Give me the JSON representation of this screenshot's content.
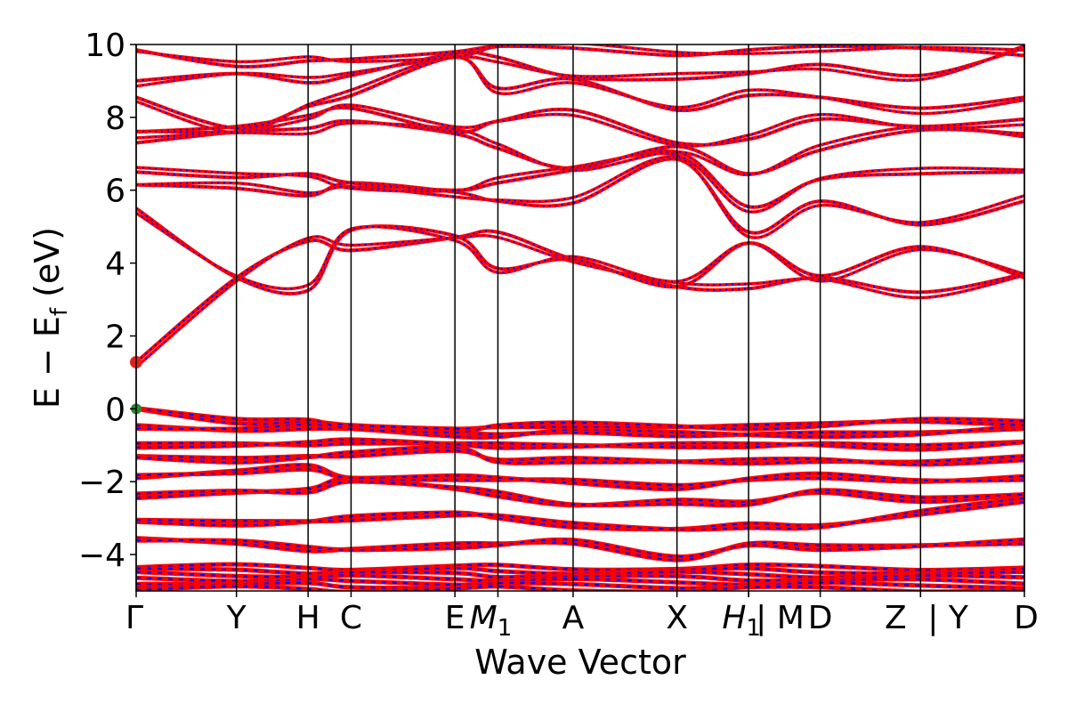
{
  "chart_data": {
    "type": "line",
    "title": "",
    "xlabel": "Wave Vector",
    "ylabel": "E − Ef (eV)",
    "ylabel_main": "E − E",
    "ylabel_sub": "f",
    "ylabel_unit": " (eV)",
    "ylim": [
      -5,
      10
    ],
    "yticks": [
      -4,
      -2,
      0,
      2,
      4,
      6,
      8,
      10
    ],
    "ytick_labels": [
      "−4",
      "−2",
      "0",
      "2",
      "4",
      "6",
      "8",
      "10"
    ],
    "xlim": [
      0,
      12.4
    ],
    "kpoints": [
      {
        "label": "Γ",
        "x": 0.0
      },
      {
        "label": "Y",
        "x": 1.4
      },
      {
        "label": "H",
        "x": 2.4
      },
      {
        "label": "C",
        "x": 3.0
      },
      {
        "label": "E",
        "x": 4.45
      },
      {
        "label": "M",
        "sub": "1",
        "x": 5.05
      },
      {
        "label": "A",
        "x": 6.1
      },
      {
        "label": "X",
        "x": 7.55
      },
      {
        "label": "H",
        "sub": "1",
        "x": 8.55
      },
      {
        "label": "| M",
        "x": 8.55
      },
      {
        "label": "D",
        "x": 9.55
      },
      {
        "label": "Z",
        "x": 10.95
      },
      {
        "label": "| Y",
        "x": 10.95
      },
      {
        "label": "D",
        "x": 12.4
      }
    ],
    "kpoint_lines": [
      0.0,
      1.4,
      2.4,
      3.0,
      4.45,
      5.05,
      6.1,
      7.55,
      8.55,
      9.55,
      10.95,
      12.4
    ],
    "cbm": {
      "x": 0.0,
      "y": 1.28,
      "color": "#e02020"
    },
    "vbm": {
      "x": 0.0,
      "y": 0.0,
      "color": "#2a8a2a"
    },
    "colors": {
      "primary": "#ff0000",
      "secondary": "#0000ff",
      "axis": "#000000"
    },
    "bands": [
      {
        "name": "valence-deep",
        "group": "valence",
        "x": [
          0,
          1.4,
          2.4,
          3.0,
          4.45,
          5.05,
          6.1,
          7.55,
          8.55,
          9.55,
          10.95,
          12.4
        ],
        "levels": [
          -4.35,
          -4.45,
          -4.55,
          -4.65,
          -4.75,
          -4.85,
          -4.95
        ]
      },
      {
        "name": "vb-1",
        "x": [
          0,
          1.4,
          2.4,
          3.0,
          4.45,
          5.05,
          6.1,
          7.55,
          8.55,
          9.55,
          10.95,
          12.4
        ],
        "y": [
          -3.55,
          -3.7,
          -3.9,
          -3.85,
          -3.7,
          -3.7,
          -3.7,
          -4.15,
          -3.7,
          -3.75,
          -3.75,
          -3.7
        ]
      },
      {
        "name": "vb-2",
        "x": [
          0,
          1.4,
          2.4,
          3.0,
          4.45,
          5.05,
          6.1,
          7.55,
          8.55,
          9.55,
          10.95,
          12.4
        ],
        "y": [
          -3.1,
          -3.2,
          -3.1,
          -2.95,
          -2.85,
          -3.0,
          -3.25,
          -3.3,
          -3.15,
          -3.2,
          -2.9,
          -2.55
        ]
      },
      {
        "name": "vb-3",
        "x": [
          0,
          1.4,
          2.4,
          3.0,
          4.45,
          5.05,
          6.1,
          7.55,
          8.55,
          9.55,
          10.95,
          12.4
        ],
        "y": [
          -2.45,
          -2.3,
          -2.2,
          -1.9,
          -2.2,
          -2.4,
          -2.65,
          -2.5,
          -2.55,
          -2.3,
          -2.55,
          -2.35
        ]
      },
      {
        "name": "vb-4",
        "x": [
          0,
          1.4,
          2.4,
          3.0,
          4.45,
          5.05,
          6.1,
          7.55,
          8.55,
          9.55,
          10.95,
          12.4
        ],
        "y": [
          -1.9,
          -1.7,
          -1.55,
          -1.9,
          -1.95,
          -1.95,
          -1.95,
          -2.1,
          -1.95,
          -1.9,
          -2.0,
          -1.85
        ]
      },
      {
        "name": "vb-5",
        "x": [
          0,
          1.4,
          2.4,
          3.0,
          4.45,
          5.05,
          6.1,
          7.55,
          8.55,
          9.55,
          10.95,
          12.4
        ],
        "y": [
          -1.3,
          -1.35,
          -1.3,
          -1.3,
          -1.15,
          -1.4,
          -1.35,
          -1.45,
          -1.5,
          -1.45,
          -1.45,
          -1.3
        ]
      },
      {
        "name": "vb-6",
        "x": [
          0,
          1.4,
          2.4,
          3.0,
          4.45,
          5.05,
          6.1,
          7.55,
          8.55,
          9.55,
          10.95,
          12.4
        ],
        "y": [
          -0.95,
          -0.95,
          -1.0,
          -0.95,
          -0.95,
          -0.95,
          -1.0,
          -1.05,
          -1.05,
          -0.95,
          -1.0,
          -0.9
        ]
      },
      {
        "name": "vb-7",
        "x": [
          0,
          1.4,
          2.4,
          3.0,
          4.45,
          5.05,
          6.1,
          7.55,
          8.55,
          9.55,
          10.95,
          12.4
        ],
        "y": [
          -0.45,
          -0.6,
          -0.55,
          -0.55,
          -0.65,
          -0.7,
          -0.65,
          -0.75,
          -0.7,
          -0.65,
          -0.65,
          -0.55
        ]
      },
      {
        "name": "vb-top",
        "x": [
          0,
          1.4,
          2.4,
          3.0,
          4.45,
          5.05,
          6.1,
          7.55,
          8.55,
          9.55,
          10.95,
          12.4
        ],
        "y": [
          0.0,
          -0.4,
          -0.35,
          -0.45,
          -0.55,
          -0.5,
          -0.5,
          -0.5,
          -0.45,
          -0.4,
          -0.35,
          -0.45
        ]
      },
      {
        "name": "cb-1",
        "x": [
          0,
          1.4,
          2.4,
          3.0,
          4.45,
          5.05,
          6.1,
          7.55,
          8.55,
          9.55,
          10.95,
          12.4
        ],
        "y": [
          1.28,
          3.6,
          4.6,
          4.35,
          4.7,
          4.85,
          4.1,
          3.35,
          3.3,
          3.6,
          3.2,
          3.7
        ]
      },
      {
        "name": "cb-2",
        "x": [
          0,
          1.4,
          2.4,
          3.0,
          4.45,
          5.05,
          6.1,
          7.55,
          8.55,
          9.55,
          10.95,
          12.4
        ],
        "y": [
          5.5,
          3.6,
          3.25,
          4.9,
          4.75,
          3.85,
          4.1,
          3.35,
          4.55,
          3.65,
          4.45,
          3.6
        ]
      },
      {
        "name": "cb-3",
        "x": [
          0,
          1.4,
          2.4,
          3.0,
          4.45,
          5.05,
          6.1,
          7.55,
          8.55,
          9.55,
          10.95,
          12.4
        ],
        "y": [
          6.15,
          6.05,
          5.85,
          6.2,
          5.95,
          5.7,
          5.65,
          6.85,
          4.85,
          5.7,
          5.05,
          5.7
        ]
      },
      {
        "name": "cb-4",
        "x": [
          0,
          1.4,
          2.4,
          3.0,
          4.45,
          5.05,
          6.1,
          7.55,
          8.55,
          9.55,
          10.95,
          12.4
        ],
        "y": [
          6.5,
          6.35,
          6.45,
          6.2,
          6.0,
          6.2,
          6.55,
          7.05,
          5.55,
          6.3,
          6.45,
          6.5
        ]
      },
      {
        "name": "cb-5",
        "x": [
          0,
          1.4,
          2.4,
          3.0,
          4.45,
          5.05,
          6.1,
          7.55,
          8.55,
          9.55,
          10.95,
          12.4
        ],
        "y": [
          7.3,
          7.6,
          7.7,
          7.9,
          7.55,
          7.15,
          6.6,
          7.2,
          6.45,
          7.1,
          7.65,
          7.55
        ]
      },
      {
        "name": "cb-6",
        "x": [
          0,
          1.4,
          2.4,
          3.0,
          4.45,
          5.05,
          6.1,
          7.55,
          8.55,
          9.55,
          10.95,
          12.4
        ],
        "y": [
          7.6,
          7.75,
          8.05,
          8.25,
          7.6,
          7.9,
          8.2,
          7.3,
          7.4,
          7.95,
          7.75,
          7.95
        ]
      },
      {
        "name": "cb-7",
        "x": [
          0,
          1.4,
          2.4,
          3.0,
          4.45,
          5.05,
          6.1,
          7.55,
          8.55,
          9.55,
          10.95,
          12.4
        ],
        "y": [
          8.55,
          7.7,
          8.3,
          8.6,
          9.65,
          8.8,
          9.05,
          8.2,
          8.6,
          8.55,
          8.25,
          8.55
        ]
      },
      {
        "name": "cb-8",
        "x": [
          0,
          1.4,
          2.4,
          3.0,
          4.45,
          5.05,
          6.1,
          7.55,
          8.55,
          9.55,
          10.95,
          12.4
        ],
        "y": [
          9.0,
          9.2,
          8.95,
          9.15,
          9.75,
          9.65,
          9.1,
          9.05,
          9.2,
          9.45,
          9.15,
          9.9
        ]
      },
      {
        "name": "cb-9",
        "x": [
          0,
          1.4,
          2.4,
          3.0,
          4.45,
          5.05,
          6.1,
          7.55,
          8.55,
          9.55,
          10.95,
          12.4
        ],
        "y": [
          9.85,
          9.4,
          9.55,
          9.6,
          9.8,
          9.95,
          9.9,
          9.7,
          9.85,
          9.95,
          9.9,
          9.7
        ]
      }
    ]
  }
}
